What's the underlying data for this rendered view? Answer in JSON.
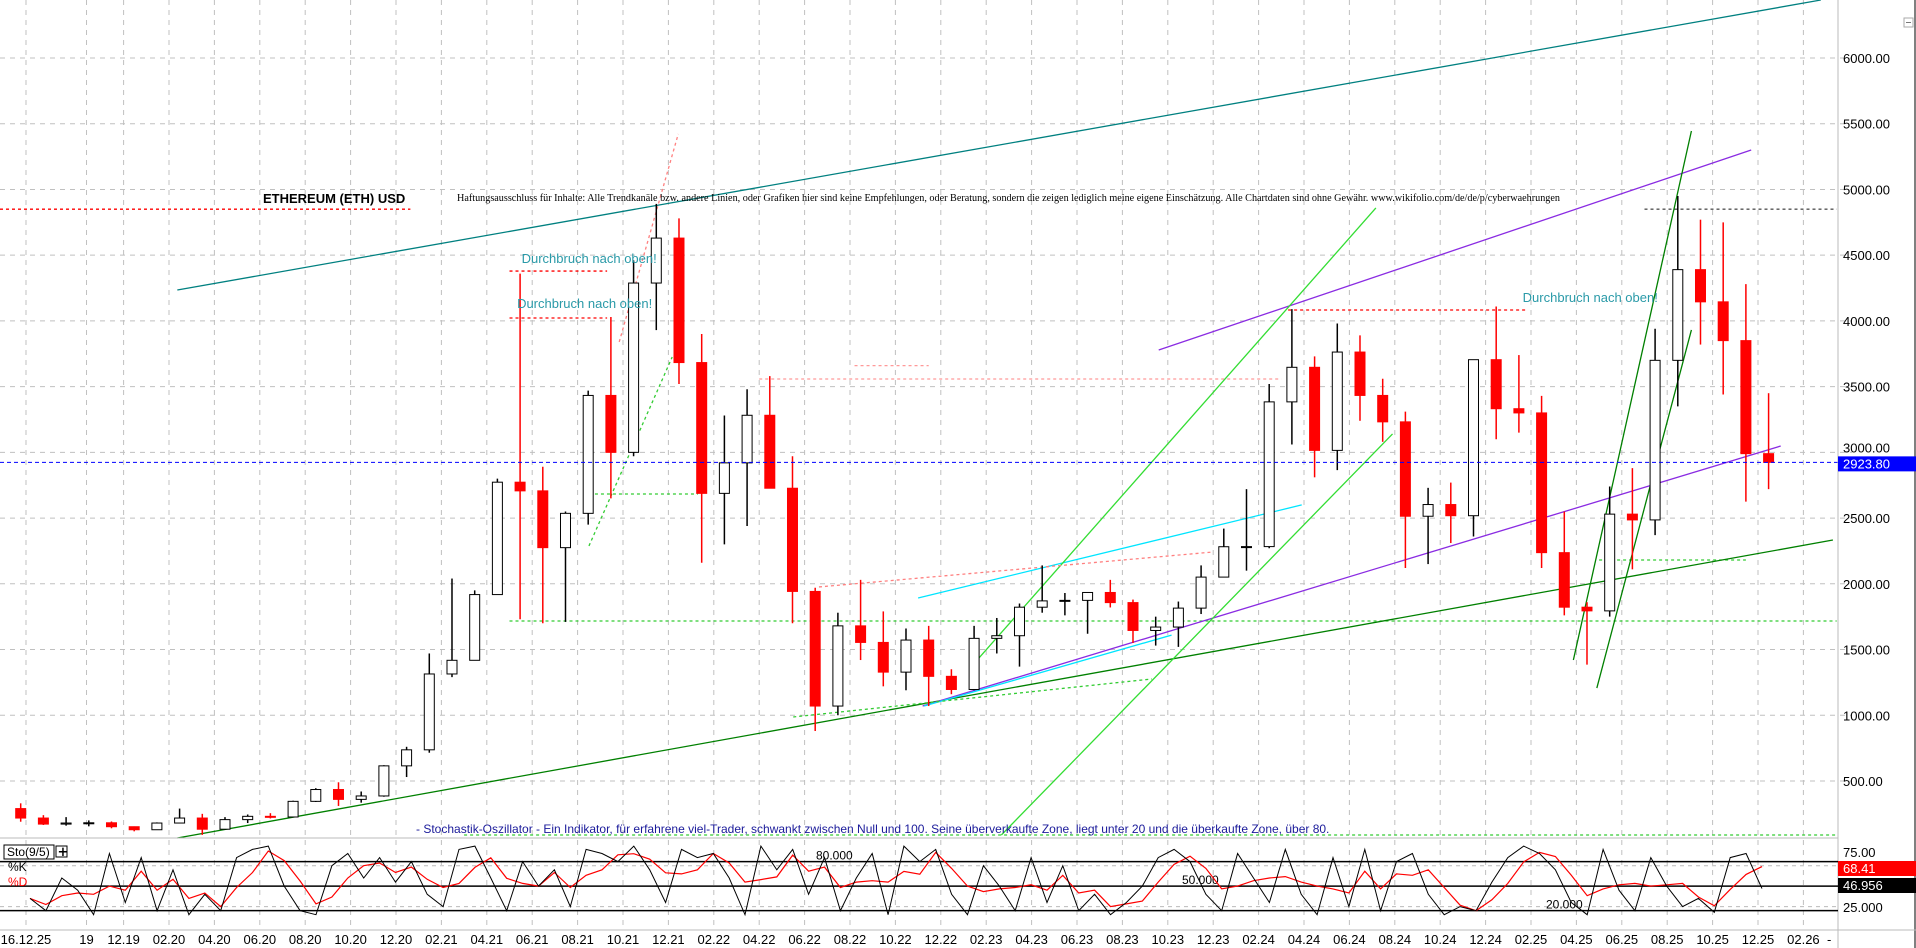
{
  "chart_data": {
    "type": "candlestick",
    "title": "ETHEREUM (ETH) USD",
    "disclaimer": "Haftungsausschluss für Inhalte: Alle Trendkanäle bzw. andere Linien, oder Grafiken hier sind keine Empfehlungen, oder Beratung, sondern die zeigen lediglich meine eigene Einschätzung. Alle Chartdaten sind ohne Gewähr.  www.wikifolio.com/de/de/p/cyberwaehrungen",
    "ylim": [
      0,
      6400
    ],
    "y_ticks": [
      "6000.00",
      "5500.00",
      "5000.00",
      "4500.00",
      "4000.00",
      "3500.00",
      "3000.00",
      "2500.00",
      "2000.00",
      "1500.00",
      "1000.00",
      "500.00"
    ],
    "y_tick_values": [
      6000,
      5500,
      5000,
      4500,
      4000,
      3500,
      3000,
      2500,
      2000,
      1500,
      1000,
      500
    ],
    "last_price": {
      "label": "2923.80",
      "value": 2923.8,
      "color": "#0000ff"
    },
    "grid": true,
    "x_ticks": [
      {
        "label": "16.12.25",
        "date": "2019-07-22"
      },
      {
        "label": "19",
        "date": "2019-10-12"
      },
      {
        "label": "12.19",
        "date": "2019-12-01"
      },
      {
        "label": "02.20",
        "date": "2020-02-01"
      },
      {
        "label": "04.20",
        "date": "2020-04-01"
      },
      {
        "label": "06.20",
        "date": "2020-06-01"
      },
      {
        "label": "08.20",
        "date": "2020-08-01"
      },
      {
        "label": "10.20",
        "date": "2020-10-01"
      },
      {
        "label": "12.20",
        "date": "2020-12-01"
      },
      {
        "label": "02.21",
        "date": "2021-02-01"
      },
      {
        "label": "04.21",
        "date": "2021-04-01"
      },
      {
        "label": "06.21",
        "date": "2021-06-01"
      },
      {
        "label": "08.21",
        "date": "2021-08-01"
      },
      {
        "label": "10.21",
        "date": "2021-10-01"
      },
      {
        "label": "12.21",
        "date": "2021-12-01"
      },
      {
        "label": "02.22",
        "date": "2022-02-01"
      },
      {
        "label": "04.22",
        "date": "2022-04-01"
      },
      {
        "label": "06.22",
        "date": "2022-06-01"
      },
      {
        "label": "08.22",
        "date": "2022-08-01"
      },
      {
        "label": "10.22",
        "date": "2022-10-01"
      },
      {
        "label": "12.22",
        "date": "2022-12-01"
      },
      {
        "label": "02.23",
        "date": "2023-02-01"
      },
      {
        "label": "04.23",
        "date": "2023-04-01"
      },
      {
        "label": "06.23",
        "date": "2023-06-01"
      },
      {
        "label": "08.23",
        "date": "2023-08-01"
      },
      {
        "label": "10.23",
        "date": "2023-10-01"
      },
      {
        "label": "12.23",
        "date": "2023-12-01"
      },
      {
        "label": "02.24",
        "date": "2024-02-01"
      },
      {
        "label": "04.24",
        "date": "2024-04-01"
      },
      {
        "label": "06.24",
        "date": "2024-06-01"
      },
      {
        "label": "08.24",
        "date": "2024-08-01"
      },
      {
        "label": "10.24",
        "date": "2024-10-01"
      },
      {
        "label": "12.24",
        "date": "2024-12-01"
      },
      {
        "label": "02.25",
        "date": "2025-02-01"
      },
      {
        "label": "04.25",
        "date": "2025-04-01"
      },
      {
        "label": "06.25",
        "date": "2025-06-01"
      },
      {
        "label": "08.25",
        "date": "2025-08-01"
      },
      {
        "label": "10.25",
        "date": "2025-10-01"
      },
      {
        "label": "12.25",
        "date": "2025-12-01"
      },
      {
        "label": "02.26",
        "date": "2026-02-01"
      }
    ],
    "x_axis_end_marker": "-",
    "colors": {
      "up": "#000000",
      "down": "#ff0000",
      "annotation": "#2a9aa8"
    },
    "ohlc_columns": [
      "month",
      "open",
      "high",
      "low",
      "close"
    ],
    "ohlc": [
      [
        "2019-07",
        290,
        330,
        190,
        218
      ],
      [
        "2019-08",
        218,
        240,
        165,
        172
      ],
      [
        "2019-09",
        172,
        225,
        160,
        180
      ],
      [
        "2019-10",
        180,
        200,
        155,
        182
      ],
      [
        "2019-11",
        182,
        192,
        140,
        152
      ],
      [
        "2019-12",
        152,
        154,
        117,
        129
      ],
      [
        "2020-01",
        129,
        185,
        127,
        180
      ],
      [
        "2020-02",
        180,
        290,
        180,
        218
      ],
      [
        "2020-03",
        218,
        250,
        90,
        133
      ],
      [
        "2020-04",
        133,
        225,
        130,
        206
      ],
      [
        "2020-05",
        206,
        245,
        180,
        231
      ],
      [
        "2020-06",
        231,
        255,
        215,
        226
      ],
      [
        "2020-07",
        226,
        350,
        225,
        345
      ],
      [
        "2020-08",
        345,
        445,
        340,
        435
      ],
      [
        "2020-09",
        435,
        490,
        310,
        360
      ],
      [
        "2020-10",
        360,
        420,
        335,
        386
      ],
      [
        "2020-11",
        386,
        620,
        380,
        615
      ],
      [
        "2020-12",
        615,
        760,
        530,
        737
      ],
      [
        "2021-01",
        737,
        1470,
        715,
        1314
      ],
      [
        "2021-02",
        1314,
        2040,
        1290,
        1418
      ],
      [
        "2021-03",
        1418,
        1950,
        1430,
        1918
      ],
      [
        "2021-04",
        1918,
        2800,
        1940,
        2773
      ],
      [
        "2021-05",
        2773,
        4360,
        1730,
        2707
      ],
      [
        "2021-06",
        2707,
        2890,
        1700,
        2275
      ],
      [
        "2021-07",
        2275,
        2550,
        1710,
        2536
      ],
      [
        "2021-08",
        2536,
        3470,
        2450,
        3433
      ],
      [
        "2021-09",
        3433,
        4030,
        2650,
        3000
      ],
      [
        "2021-10",
        3000,
        4460,
        2970,
        4288
      ],
      [
        "2021-11",
        4288,
        4890,
        3930,
        4630
      ],
      [
        "2021-12",
        4630,
        4780,
        3520,
        3683
      ],
      [
        "2022-01",
        3683,
        3900,
        2160,
        2688
      ],
      [
        "2022-02",
        2688,
        3280,
        2300,
        2920
      ],
      [
        "2022-03",
        2920,
        3480,
        2440,
        3282
      ],
      [
        "2022-04",
        3282,
        3580,
        2780,
        2727
      ],
      [
        "2022-05",
        2727,
        2970,
        1700,
        1942
      ],
      [
        "2022-06",
        1942,
        1970,
        880,
        1070
      ],
      [
        "2022-07",
        1070,
        1780,
        1000,
        1680
      ],
      [
        "2022-08",
        1680,
        2030,
        1420,
        1554
      ],
      [
        "2022-09",
        1554,
        1790,
        1220,
        1328
      ],
      [
        "2022-10",
        1328,
        1660,
        1190,
        1572
      ],
      [
        "2022-11",
        1572,
        1680,
        1070,
        1296
      ],
      [
        "2022-12",
        1296,
        1350,
        1160,
        1196
      ],
      [
        "2023-01",
        1196,
        1680,
        1190,
        1585
      ],
      [
        "2023-02",
        1585,
        1740,
        1470,
        1605
      ],
      [
        "2023-03",
        1605,
        1850,
        1370,
        1822
      ],
      [
        "2023-04",
        1822,
        2140,
        1780,
        1870
      ],
      [
        "2023-05",
        1870,
        1930,
        1760,
        1874
      ],
      [
        "2023-06",
        1874,
        1930,
        1620,
        1934
      ],
      [
        "2023-07",
        1934,
        2030,
        1820,
        1857
      ],
      [
        "2023-08",
        1857,
        1880,
        1550,
        1645
      ],
      [
        "2023-09",
        1645,
        1750,
        1530,
        1671
      ],
      [
        "2023-10",
        1671,
        1865,
        1520,
        1815
      ],
      [
        "2023-11",
        1815,
        2140,
        1770,
        2051
      ],
      [
        "2023-12",
        2051,
        2420,
        2050,
        2282
      ],
      [
        "2024-01",
        2282,
        2720,
        2100,
        2283
      ],
      [
        "2024-02",
        2283,
        3520,
        2270,
        3384
      ],
      [
        "2024-03",
        3384,
        4090,
        3060,
        3647
      ],
      [
        "2024-04",
        3647,
        3730,
        2810,
        3015
      ],
      [
        "2024-05",
        3015,
        3980,
        2865,
        3763
      ],
      [
        "2024-06",
        3763,
        3890,
        3240,
        3433
      ],
      [
        "2024-07",
        3433,
        3560,
        3080,
        3232
      ],
      [
        "2024-08",
        3232,
        3310,
        2120,
        2514
      ],
      [
        "2024-09",
        2514,
        2730,
        2150,
        2603
      ],
      [
        "2024-10",
        2603,
        2770,
        2310,
        2518
      ],
      [
        "2024-11",
        2518,
        3680,
        2360,
        3705
      ],
      [
        "2024-12",
        3705,
        4110,
        3100,
        3332
      ],
      [
        "2025-01",
        3332,
        3740,
        3150,
        3300
      ],
      [
        "2025-02",
        3300,
        3430,
        2120,
        2237
      ],
      [
        "2025-03",
        2237,
        2550,
        1760,
        1822
      ],
      [
        "2025-04",
        1822,
        1860,
        1385,
        1794
      ],
      [
        "2025-05",
        1794,
        2740,
        1750,
        2530
      ],
      [
        "2025-06",
        2530,
        2880,
        2110,
        2486
      ],
      [
        "2025-07",
        2486,
        3940,
        2370,
        3700
      ],
      [
        "2025-08",
        3700,
        4950,
        3350,
        4390
      ],
      [
        "2025-09",
        4390,
        4770,
        3820,
        4145
      ],
      [
        "2025-10",
        4145,
        4750,
        3440,
        3850
      ],
      [
        "2025-11",
        3850,
        4280,
        2625,
        2990
      ],
      [
        "2025-12",
        2990,
        3450,
        2720,
        2924
      ]
    ],
    "trendlines": [
      {
        "name": "upper-channel",
        "color": "#008080",
        "style": "solid",
        "from": [
          "2020-02-12",
          4235
        ],
        "to": [
          "2026-02-24",
          6441
        ]
      },
      {
        "name": "long-support",
        "color": "#008000",
        "style": "solid",
        "from": [
          "2020-02-12",
          66
        ],
        "to": [
          "2026-03-10",
          2333
        ]
      },
      {
        "name": "purple-upper",
        "color": "#8a2be2",
        "style": "solid",
        "from": [
          "2023-09-19",
          3779
        ],
        "to": [
          "2025-11-22",
          5300
        ]
      },
      {
        "name": "purple-lower",
        "color": "#8a2be2",
        "style": "solid",
        "from": [
          "2022-11-07",
          1070
        ],
        "to": [
          "2026-01-01",
          3048
        ]
      },
      {
        "name": "cyan-upper",
        "color": "#00e5ff",
        "style": "solid",
        "from": [
          "2022-11-01",
          1892
        ],
        "to": [
          "2024-03-28",
          2600
        ]
      },
      {
        "name": "cyan-lower",
        "color": "#00e5ff",
        "style": "solid",
        "from": [
          "2022-11-09",
          1070
        ],
        "to": [
          "2023-10-06",
          1610
        ]
      },
      {
        "name": "green-steep-a",
        "color": "#33dd33",
        "style": "solid",
        "from": [
          "2023-01-19",
          1420
        ],
        "to": [
          "2024-07-06",
          4859
        ]
      },
      {
        "name": "green-steep-b",
        "color": "#33dd33",
        "style": "solid",
        "from": [
          "2023-02-21",
          89
        ],
        "to": [
          "2024-07-28",
          3140
        ]
      },
      {
        "name": "green-dotted-2022",
        "color": "#33cc33",
        "style": "dashed",
        "from": [
          "2022-05-16",
          987
        ],
        "to": [
          "2023-09-10",
          1276
        ]
      },
      {
        "name": "green-dotted-2021",
        "color": "#33cc33",
        "style": "dashed",
        "from": [
          "2021-08-16",
          2288
        ],
        "to": [
          "2021-12-06",
          3725
        ]
      },
      {
        "name": "green-2025-a",
        "color": "#008000",
        "style": "solid",
        "from": [
          "2025-03-27",
          1420
        ],
        "to": [
          "2025-09-03",
          5445
        ]
      },
      {
        "name": "green-2025-b",
        "color": "#008000",
        "style": "solid",
        "from": [
          "2025-04-28",
          1207
        ],
        "to": [
          "2025-09-03",
          3931
        ]
      },
      {
        "name": "red-dotted-2021",
        "color": "#ff8080",
        "style": "dashed",
        "from": [
          "2021-09-26",
          3840
        ],
        "to": [
          "2021-12-14",
          5422
        ]
      },
      {
        "name": "red-dotted-2022",
        "color": "#ff8080",
        "style": "dashed",
        "from": [
          "2022-06-20",
          1976
        ],
        "to": [
          "2023-12-01",
          2242
        ]
      }
    ],
    "levels": [
      {
        "color": "#ff0000",
        "style": "dashed",
        "value": 4850,
        "from": "2019-06-01",
        "to": "2020-12-20"
      },
      {
        "color": "#555555",
        "style": "dashed",
        "value": 4850,
        "from": "2025-07-01",
        "to": "2026-03-15"
      },
      {
        "color": "#ff0000",
        "style": "dashed",
        "value": 4379,
        "from": "2021-05-01",
        "to": "2021-09-10"
      },
      {
        "color": "#ff0000",
        "style": "dashed",
        "value": 4022,
        "from": "2021-05-01",
        "to": "2021-09-10"
      },
      {
        "color": "#ff0000",
        "style": "dashed",
        "value": 4083,
        "from": "2024-03-10",
        "to": "2025-01-25"
      },
      {
        "color": "#ff9999",
        "style": "dashed",
        "value": 3558,
        "from": "2022-04-01",
        "to": "2024-03-01"
      },
      {
        "color": "#ff9999",
        "style": "dashed",
        "value": 3660,
        "from": "2022-08-07",
        "to": "2022-11-15"
      },
      {
        "color": "#33cc33",
        "style": "dashed",
        "value": 1717,
        "from": "2021-05-01",
        "to": "2026-03-15"
      },
      {
        "color": "#33cc33",
        "style": "dashed",
        "value": 2683,
        "from": "2021-08-16",
        "to": "2022-01-10"
      },
      {
        "color": "#33cc33",
        "style": "dashed",
        "value": 2181,
        "from": "2025-05-01",
        "to": "2025-11-15"
      },
      {
        "color": "#33cc33",
        "style": "dashed",
        "value": 89,
        "from": "2021-03-01",
        "to": "2026-03-15"
      }
    ],
    "annotations": [
      {
        "text": "Durchbruch nach oben!",
        "date": "2021-05-17",
        "price": 4440
      },
      {
        "text": "Durchbruch nach oben!",
        "date": "2021-05-11",
        "price": 4098
      },
      {
        "text": "Durchbruch nach oben!",
        "date": "2025-01-20",
        "price": 4144
      }
    ],
    "indicator": {
      "type": "line",
      "name": "Sto(9/5)",
      "description": "- Stochastik-Oszillator - Ein Indikator, für erfahrene viel-Trader, schwankt zwischen Null und 100. Seine überverkaufte Zone, liegt unter 20 und die überkaufte Zone, über 80.",
      "ylim": [
        0,
        100
      ],
      "levels": [
        {
          "label": "80.000",
          "value": 80
        },
        {
          "label": "50.000",
          "value": 50
        },
        {
          "label": "20.000",
          "value": 20
        }
      ],
      "axis_labels": [
        {
          "label": "75.00",
          "value": 75
        },
        {
          "label": "25.000",
          "value": 25
        }
      ],
      "series": [
        {
          "name": "%K",
          "color": "#000000",
          "last_label": "46.956",
          "values": [
            35,
            20,
            60,
            45,
            15,
            90,
            30,
            85,
            20,
            70,
            15,
            40,
            20,
            85,
            95,
            99,
            50,
            20,
            15,
            75,
            90,
            60,
            85,
            55,
            80,
            40,
            25,
            95,
            99,
            60,
            20,
            80,
            50,
            70,
            25,
            95,
            90,
            80,
            99,
            70,
            30,
            95,
            85,
            90,
            60,
            15,
            99,
            70,
            95,
            40,
            85,
            20,
            60,
            90,
            15,
            99,
            80,
            95,
            40,
            15,
            75,
            50,
            20,
            85,
            30,
            75,
            20,
            40,
            15,
            30,
            50,
            85,
            95,
            80,
            40,
            20,
            90,
            60,
            30,
            95,
            40,
            15,
            85,
            25,
            95,
            20,
            80,
            90,
            40,
            15,
            25,
            20,
            55,
            85,
            99,
            90,
            70,
            30,
            15,
            95,
            45,
            20,
            85,
            50,
            25,
            35,
            18,
            85,
            90,
            46.956
          ]
        },
        {
          "name": "%D",
          "color": "#ff0000",
          "last_label": "68.41"
        }
      ]
    }
  }
}
